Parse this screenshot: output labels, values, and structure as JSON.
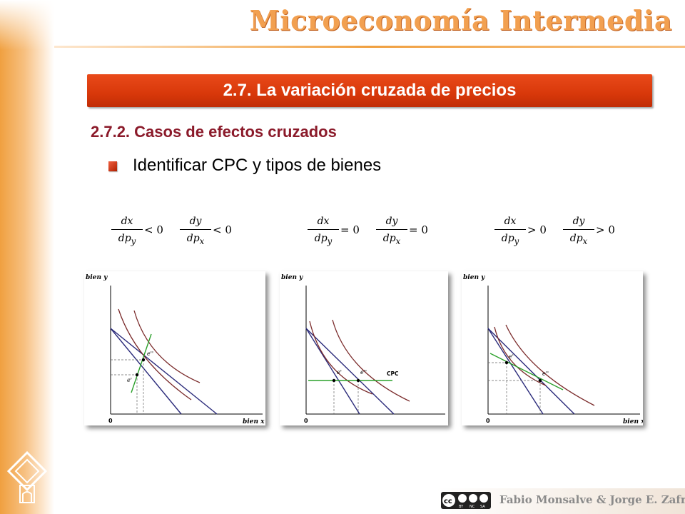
{
  "course_title": "Microeconomía Intermedia",
  "banner": "2.7. La variación cruzada de precios",
  "subtitle": "2.7.2. Casos de efectos cruzados",
  "bullet": "Identificar CPC y tipos de bienes",
  "formulas": [
    {
      "f1_num": "dx",
      "f1_den": "dp",
      "f1_sub": "y",
      "f1_rel": "< 0",
      "f2_num": "dy",
      "f2_den": "dp",
      "f2_sub": "x",
      "f2_rel": "< 0"
    },
    {
      "f1_num": "dx",
      "f1_den": "dp",
      "f1_sub": "y",
      "f1_rel": "= 0",
      "f2_num": "dy",
      "f2_den": "dp",
      "f2_sub": "x",
      "f2_rel": "= 0"
    },
    {
      "f1_num": "dx",
      "f1_den": "dp",
      "f1_sub": "y",
      "f1_rel": "> 0",
      "f2_num": "dy",
      "f2_den": "dp",
      "f2_sub": "x",
      "f2_rel": "> 0"
    }
  ],
  "charts": {
    "ylabel": "bien y",
    "xlabel": "bien x",
    "origin": "0",
    "point_a": "e'",
    "point_b": "e''",
    "cpc_label": "CPC",
    "colors": {
      "budget": "#2a2a7a",
      "indifference": "#7a2a2a",
      "cpc": "#2aa02a"
    }
  },
  "footer": {
    "author": "Fabio Monsalve & Jorge E. Zafrilla",
    "cc_icons": [
      "cc-icon",
      "by-icon",
      "nc-icon",
      "sa-icon"
    ],
    "cc_labels": [
      "BY",
      "NC",
      "SA"
    ]
  }
}
